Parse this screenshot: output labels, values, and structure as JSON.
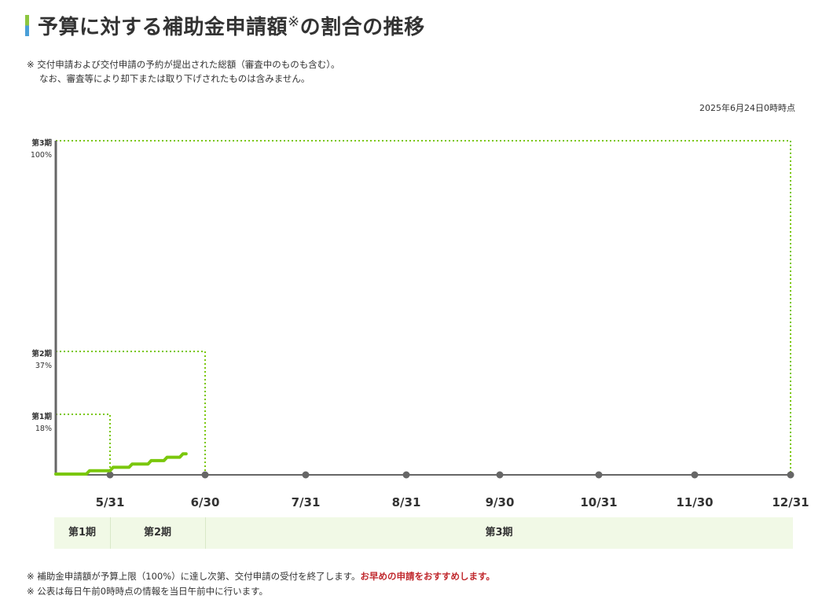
{
  "header": {
    "title": "予算に対する補助金申請額",
    "title_mark": "※",
    "title_suffix": "の割合の推移"
  },
  "notes_top": {
    "line1": "※ 交付申請および交付申請の予約が提出された総額（審査中のものも含む）。",
    "line2": "なお、審査等により却下または取り下げされたものは含みません。"
  },
  "as_of": "2025年6月24日0時時点",
  "colors": {
    "accent_green": "#7ac70c",
    "axis": "#666666",
    "phase_band": "#f1f9e6",
    "emphasis_red": "#c0282d"
  },
  "chart_data": {
    "type": "line",
    "x_ticks": [
      "5/31",
      "6/30",
      "7/31",
      "8/31",
      "9/30",
      "10/31",
      "11/30",
      "12/31"
    ],
    "x_range": [
      "2025-05-15",
      "2025-12-31"
    ],
    "y_range": [
      0,
      100
    ],
    "thresholds": [
      {
        "phase": "第1期",
        "value_label": "18%",
        "value": 18,
        "end": "2025-05-31"
      },
      {
        "phase": "第2期",
        "value_label": "37%",
        "value": 37,
        "end": "2025-06-30"
      },
      {
        "phase": "第3期",
        "value_label": "100%",
        "value": 100,
        "end": "2025-12-31"
      }
    ],
    "series": [
      {
        "points": [
          [
            "2025-05-15",
            0
          ],
          [
            "2025-05-24",
            0
          ],
          [
            "2025-05-25",
            1
          ],
          [
            "2025-05-31",
            1
          ],
          [
            "2025-06-01",
            2
          ],
          [
            "2025-06-06",
            2
          ],
          [
            "2025-06-07",
            3
          ],
          [
            "2025-06-12",
            3
          ],
          [
            "2025-06-13",
            4
          ],
          [
            "2025-06-17",
            4
          ],
          [
            "2025-06-18",
            5
          ],
          [
            "2025-06-22",
            5
          ],
          [
            "2025-06-23",
            6
          ],
          [
            "2025-06-24",
            6
          ]
        ]
      }
    ],
    "phases": [
      {
        "label": "第1期",
        "start": "2025-05-15",
        "end": "2025-05-31"
      },
      {
        "label": "第2期",
        "start": "2025-05-31",
        "end": "2025-06-30"
      },
      {
        "label": "第3期",
        "start": "2025-06-30",
        "end": "2025-12-31"
      }
    ],
    "grid": false
  },
  "notes_bottom": {
    "line1": "※  補助金申請額が予算上限（100%）に達し次第、交付申請の受付を終了します。",
    "line1_emphasis": "お早めの申請をおすすめします。",
    "line2": "※  公表は毎日午前0時時点の情報を当日午前中に行います。"
  }
}
